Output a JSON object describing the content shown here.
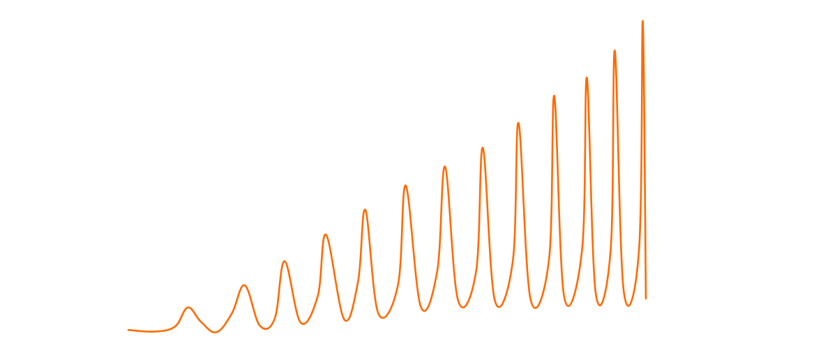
{
  "chart_data": {
    "type": "line",
    "title": "",
    "xlabel": "",
    "ylabel": "",
    "axes_visible": false,
    "grid": false,
    "legend": "none",
    "line_color": "#ff6a00",
    "x_domain": [
      0,
      1
    ],
    "y_domain": [
      0,
      1
    ],
    "series": [
      {
        "points": [
          [
            0.0,
            0.05
          ],
          [
            0.05,
            0.045
          ],
          [
            0.09,
            0.06
          ],
          [
            0.115,
            0.118
          ],
          [
            0.14,
            0.075
          ],
          [
            0.17,
            0.043
          ],
          [
            0.2,
            0.1
          ],
          [
            0.225,
            0.185
          ],
          [
            0.254,
            0.063
          ],
          [
            0.283,
            0.085
          ],
          [
            0.302,
            0.258
          ],
          [
            0.333,
            0.072
          ],
          [
            0.366,
            0.153
          ],
          [
            0.382,
            0.338
          ],
          [
            0.417,
            0.082
          ],
          [
            0.444,
            0.198
          ],
          [
            0.458,
            0.413
          ],
          [
            0.483,
            0.1
          ],
          [
            0.521,
            0.186
          ],
          [
            0.536,
            0.487
          ],
          [
            0.565,
            0.121
          ],
          [
            0.597,
            0.23
          ],
          [
            0.612,
            0.544
          ],
          [
            0.637,
            0.14
          ],
          [
            0.672,
            0.228
          ],
          [
            0.685,
            0.601
          ],
          [
            0.708,
            0.14
          ],
          [
            0.743,
            0.26
          ],
          [
            0.754,
            0.676
          ],
          [
            0.777,
            0.144
          ],
          [
            0.813,
            0.266
          ],
          [
            0.823,
            0.758
          ],
          [
            0.842,
            0.151
          ],
          [
            0.877,
            0.298
          ],
          [
            0.886,
            0.813
          ],
          [
            0.903,
            0.162
          ],
          [
            0.932,
            0.294
          ],
          [
            0.94,
            0.895
          ],
          [
            0.957,
            0.17
          ],
          [
            0.987,
            0.299
          ],
          [
            0.994,
            0.984
          ],
          [
            1.0,
            0.145
          ]
        ]
      }
    ]
  }
}
